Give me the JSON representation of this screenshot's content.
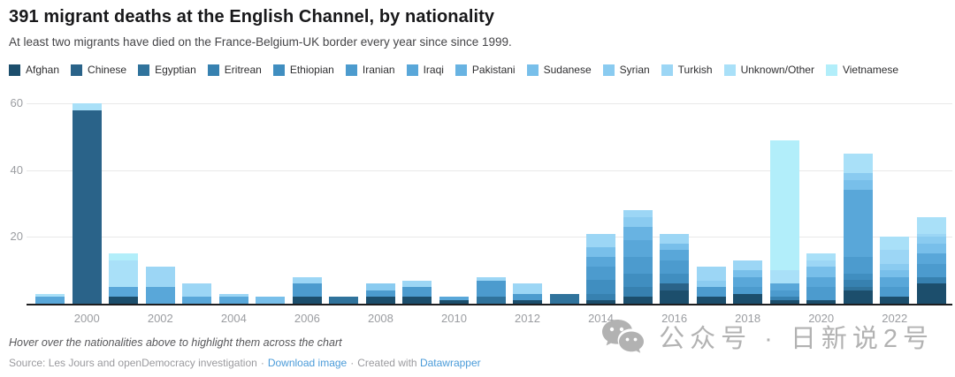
{
  "header": {
    "title": "391 migrant deaths at the English Channel, by nationality",
    "subtitle": "At least two migrants have died on the France-Belgium-UK border every year since since 1999."
  },
  "footer": {
    "footnote": "Hover over the nationalities above to highlight them across the chart",
    "source_prefix": "Source: Les Jours and openDemocracy investigation",
    "separator": "·",
    "download_link": "Download image",
    "created_with": "Created with",
    "datawrapper_link": "Datawrapper",
    "link_color": "#4a9bd9"
  },
  "watermark": {
    "icon": "wechat-icon",
    "text": "公众号 · 日新说2号",
    "color": "#aeaeae"
  },
  "chart_data": {
    "type": "bar",
    "stacked": true,
    "title": "391 migrant deaths at the English Channel, by nationality",
    "total_deaths": 391,
    "categories": [
      1999,
      2000,
      2001,
      2002,
      2003,
      2004,
      2005,
      2006,
      2007,
      2008,
      2009,
      2010,
      2011,
      2012,
      2013,
      2014,
      2015,
      2016,
      2017,
      2018,
      2019,
      2020,
      2021,
      2022,
      2023
    ],
    "x_tick_labels": [
      "2000",
      "2002",
      "2004",
      "2006",
      "2008",
      "2010",
      "2012",
      "2014",
      "2016",
      "2018",
      "2020",
      "2022"
    ],
    "yticks": [
      20,
      40,
      60
    ],
    "ylim": [
      0,
      62
    ],
    "grid": true,
    "legend_position": "top",
    "totals": [
      3,
      60,
      15,
      11,
      6,
      3,
      2,
      8,
      2,
      6,
      7,
      2,
      8,
      6,
      3,
      21,
      28,
      21,
      11,
      13,
      49,
      15,
      45,
      20,
      26
    ],
    "series": [
      {
        "name": "Afghan",
        "color": "#1c4e6c",
        "values": [
          0,
          0,
          2,
          0,
          0,
          0,
          0,
          2,
          0,
          2,
          2,
          1,
          0,
          1,
          0,
          1,
          2,
          4,
          2,
          3,
          1,
          1,
          4,
          2,
          6
        ]
      },
      {
        "name": "Chinese",
        "color": "#2a6389",
        "values": [
          0,
          58,
          0,
          0,
          0,
          0,
          0,
          0,
          0,
          0,
          0,
          0,
          0,
          0,
          0,
          0,
          0,
          2,
          0,
          0,
          0,
          0,
          0,
          0,
          0
        ]
      },
      {
        "name": "Egyptian",
        "color": "#30739c",
        "values": [
          0,
          0,
          0,
          0,
          0,
          0,
          0,
          0,
          2,
          0,
          0,
          0,
          2,
          0,
          3,
          0,
          0,
          0,
          0,
          0,
          0,
          0,
          1,
          0,
          0
        ]
      },
      {
        "name": "Eritrean",
        "color": "#3781b0",
        "values": [
          0,
          0,
          0,
          0,
          0,
          0,
          0,
          0,
          0,
          0,
          0,
          0,
          0,
          0,
          0,
          2,
          3,
          0,
          0,
          0,
          1,
          0,
          2,
          0,
          2
        ]
      },
      {
        "name": "Ethiopian",
        "color": "#408ec0",
        "values": [
          0,
          0,
          0,
          0,
          0,
          0,
          0,
          0,
          0,
          0,
          0,
          0,
          0,
          0,
          0,
          4,
          4,
          3,
          0,
          0,
          0,
          0,
          2,
          0,
          0
        ]
      },
      {
        "name": "Iranian",
        "color": "#4c9bce",
        "values": [
          0,
          0,
          0,
          0,
          0,
          0,
          0,
          4,
          0,
          2,
          3,
          0,
          5,
          2,
          0,
          4,
          5,
          4,
          3,
          2,
          2,
          4,
          5,
          3,
          4
        ]
      },
      {
        "name": "Iraqi",
        "color": "#59a7d9",
        "values": [
          2,
          0,
          3,
          5,
          2,
          2,
          0,
          0,
          0,
          0,
          0,
          1,
          0,
          0,
          0,
          3,
          5,
          3,
          0,
          3,
          2,
          3,
          20,
          3,
          3
        ]
      },
      {
        "name": "Pakistani",
        "color": "#68b3e2",
        "values": [
          0,
          0,
          0,
          0,
          0,
          0,
          0,
          0,
          0,
          0,
          0,
          0,
          0,
          0,
          0,
          0,
          4,
          0,
          0,
          0,
          0,
          0,
          0,
          0,
          0
        ]
      },
      {
        "name": "Sudanese",
        "color": "#78bfea",
        "values": [
          0,
          0,
          0,
          0,
          0,
          0,
          2,
          0,
          0,
          0,
          0,
          0,
          0,
          0,
          0,
          3,
          0,
          2,
          0,
          2,
          0,
          3,
          3,
          2,
          3
        ]
      },
      {
        "name": "Syrian",
        "color": "#8acbf0",
        "values": [
          0,
          0,
          0,
          0,
          0,
          0,
          0,
          0,
          0,
          2,
          0,
          0,
          0,
          0,
          0,
          0,
          3,
          0,
          2,
          0,
          0,
          0,
          2,
          2,
          2
        ]
      },
      {
        "name": "Turkish",
        "color": "#9cd6f5",
        "values": [
          0,
          0,
          0,
          6,
          4,
          1,
          0,
          2,
          0,
          0,
          2,
          0,
          1,
          3,
          0,
          4,
          2,
          3,
          4,
          3,
          0,
          2,
          0,
          4,
          1
        ]
      },
      {
        "name": "Unknown/Other",
        "color": "#a9e0f8",
        "values": [
          1,
          2,
          8,
          0,
          0,
          0,
          0,
          0,
          0,
          0,
          0,
          0,
          0,
          0,
          0,
          0,
          0,
          0,
          0,
          0,
          4,
          2,
          6,
          4,
          5
        ]
      },
      {
        "name": "Vietnamese",
        "color": "#b2eefa",
        "values": [
          0,
          0,
          2,
          0,
          0,
          0,
          0,
          0,
          0,
          0,
          0,
          0,
          0,
          0,
          0,
          0,
          0,
          0,
          0,
          0,
          39,
          0,
          0,
          0,
          0
        ]
      }
    ]
  }
}
